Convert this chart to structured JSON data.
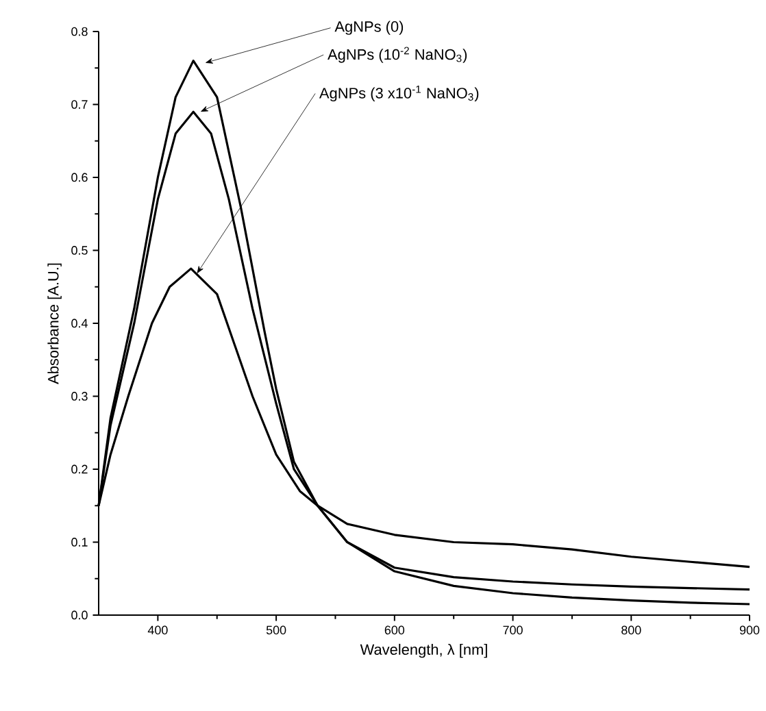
{
  "chart_data": {
    "type": "line",
    "xlabel": "Wavelength, λ [nm]",
    "ylabel": "Absorbance [A.U.]",
    "xlim": [
      350,
      900
    ],
    "ylim": [
      0,
      0.8
    ],
    "xticks": [
      400,
      500,
      600,
      700,
      800,
      900
    ],
    "yticks": [
      {
        "value": 0,
        "label": "0.0"
      },
      0.1,
      0.2,
      0.3,
      0.4,
      0.5,
      0.6,
      0.7,
      0.8
    ],
    "grid": false,
    "legend": false,
    "marker": "none",
    "line_style": "solid",
    "series": [
      {
        "name": "AgNPs (0)",
        "color": "#000000",
        "x": [
          350,
          360,
          380,
          400,
          415,
          430,
          450,
          470,
          490,
          500,
          515,
          535,
          560,
          600,
          650,
          700,
          750,
          800,
          850,
          900
        ],
        "values": [
          0.15,
          0.27,
          0.42,
          0.6,
          0.71,
          0.76,
          0.71,
          0.56,
          0.39,
          0.31,
          0.21,
          0.15,
          0.1,
          0.065,
          0.052,
          0.046,
          0.042,
          0.039,
          0.037,
          0.035
        ]
      },
      {
        "name": "AgNPs (10$^{-2}$ NaNO$_{3}$)",
        "color": "#000000",
        "x": [
          350,
          360,
          380,
          400,
          415,
          430,
          445,
          460,
          480,
          500,
          515,
          535,
          560,
          600,
          650,
          700,
          750,
          800,
          850,
          900
        ],
        "values": [
          0.15,
          0.26,
          0.4,
          0.57,
          0.66,
          0.69,
          0.66,
          0.57,
          0.42,
          0.29,
          0.2,
          0.15,
          0.1,
          0.06,
          0.04,
          0.03,
          0.024,
          0.02,
          0.017,
          0.015
        ]
      },
      {
        "name": "AgNPs (3 x10$^{-1}$ NaNO$_{3}$)",
        "color": "#000000",
        "x": [
          350,
          360,
          375,
          395,
          410,
          428,
          450,
          465,
          480,
          500,
          520,
          535,
          560,
          600,
          650,
          700,
          750,
          800,
          850,
          900
        ],
        "values": [
          0.15,
          0.22,
          0.3,
          0.4,
          0.45,
          0.475,
          0.44,
          0.37,
          0.3,
          0.22,
          0.17,
          0.15,
          0.125,
          0.11,
          0.1,
          0.097,
          0.09,
          0.08,
          0.073,
          0.066
        ]
      }
    ]
  }
}
